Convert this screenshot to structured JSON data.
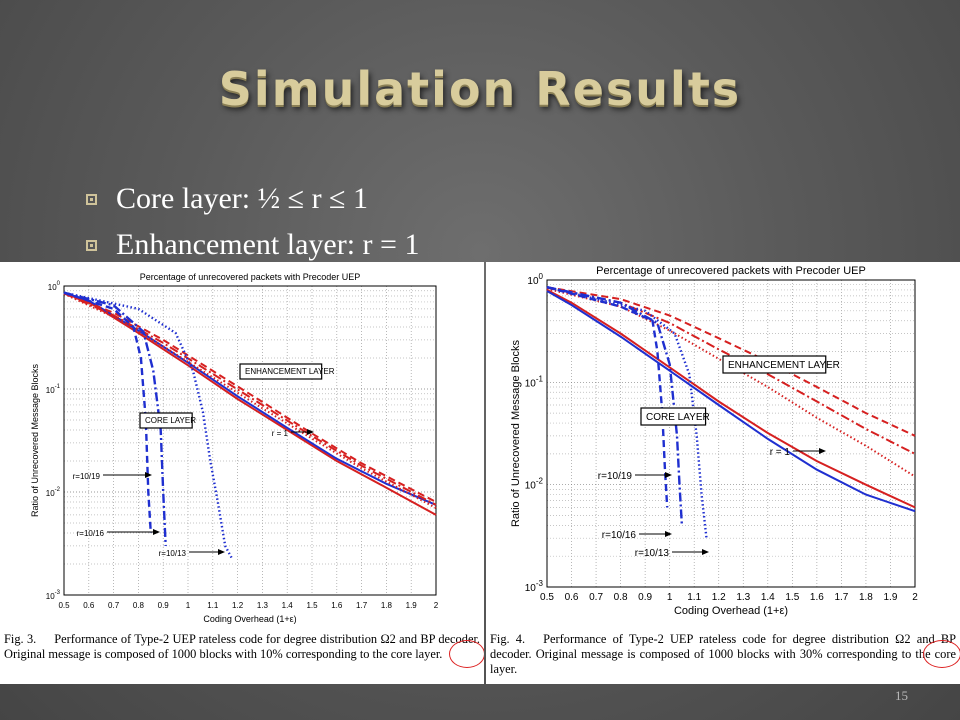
{
  "slide": {
    "title": "Simulation Results",
    "bullets": [
      "Core layer: ½ ≤ r ≤ 1",
      "Enhancement layer: r = 1"
    ],
    "page_number": "15"
  },
  "colors": {
    "title": "#d8cc9c",
    "red": "#d62020",
    "blue": "#1f2fd0"
  },
  "figures": [
    {
      "caption": {
        "fig_label": "Fig. 3.",
        "text": "Performance of Type-2 UEP rateless code for degree distribution Ω2 and BP decoder. Original message is composed of 1000 blocks with 10% corresponding to the core layer."
      }
    },
    {
      "caption": {
        "fig_label": "Fig. 4.",
        "text": "Performance of Type-2 UEP rateless code for degree distribution Ω2 and BP decoder. Original message is composed of 1000 blocks with 30% corresponding to the core layer."
      }
    }
  ],
  "chart_data": [
    {
      "type": "line",
      "title": "Percentage of unrecovered packets with Precoder UEP",
      "xlabel": "Coding Overhead (1+ε)",
      "ylabel": "Ratio of Unrecovered Message Blocks",
      "xlim": [
        0.5,
        2
      ],
      "ylim": [
        0.001,
        1
      ],
      "yscale": "log",
      "grid": true,
      "xticks": [
        "0.5",
        "0.6",
        "0.7",
        "0.8",
        "0.9",
        "1",
        "1.1",
        "1.2",
        "1.3",
        "1.4",
        "1.5",
        "1.6",
        "1.7",
        "1.8",
        "1.9",
        "2"
      ],
      "yticks": [
        "10^0",
        "10^-1",
        "10^-2",
        "10^-3"
      ],
      "annotations": [
        "ENHANCEMENT LAYER",
        "CORE LAYER",
        "r = 1",
        "r=10/19",
        "r=10/16",
        "r=10/13"
      ],
      "series": [
        {
          "color": "#d62020",
          "style": "solid",
          "x": [
            0.5,
            0.6,
            0.8,
            1.0,
            1.2,
            1.4,
            1.6,
            1.8,
            2.0
          ],
          "y": [
            0.85,
            0.7,
            0.35,
            0.17,
            0.08,
            0.04,
            0.02,
            0.011,
            0.006
          ]
        },
        {
          "color": "#1f2fd0",
          "style": "solid",
          "x": [
            0.5,
            0.6,
            0.8,
            1.0,
            1.2,
            1.4,
            1.6,
            1.8,
            2.0
          ],
          "y": [
            0.86,
            0.72,
            0.37,
            0.18,
            0.085,
            0.042,
            0.021,
            0.012,
            0.0075
          ]
        },
        {
          "color": "#d62020",
          "style": "dashed",
          "x": [
            0.5,
            0.7,
            0.9,
            1.1,
            1.3,
            1.5,
            1.7,
            2.0
          ],
          "y": [
            0.85,
            0.55,
            0.3,
            0.15,
            0.075,
            0.037,
            0.019,
            0.008
          ]
        },
        {
          "color": "#d62020",
          "style": "dashdot",
          "x": [
            0.5,
            0.7,
            0.9,
            1.1,
            1.3,
            1.5,
            1.7,
            2.0
          ],
          "y": [
            0.85,
            0.52,
            0.28,
            0.14,
            0.07,
            0.035,
            0.018,
            0.0075
          ]
        },
        {
          "color": "#d62020",
          "style": "dotted",
          "x": [
            0.5,
            0.7,
            0.9,
            1.1,
            1.3,
            1.5,
            1.7,
            2.0
          ],
          "y": [
            0.84,
            0.5,
            0.26,
            0.13,
            0.065,
            0.033,
            0.017,
            0.007
          ]
        },
        {
          "color": "#1f2fd0",
          "style": "dashed",
          "x": [
            0.5,
            0.7,
            0.78,
            0.81,
            0.83,
            0.84,
            0.85
          ],
          "y": [
            0.86,
            0.6,
            0.4,
            0.2,
            0.05,
            0.01,
            0.004
          ]
        },
        {
          "color": "#1f2fd0",
          "style": "dashdot",
          "x": [
            0.5,
            0.7,
            0.82,
            0.86,
            0.89,
            0.9,
            0.91
          ],
          "y": [
            0.86,
            0.65,
            0.36,
            0.15,
            0.04,
            0.01,
            0.003
          ]
        },
        {
          "color": "#1f2fd0",
          "style": "dotted",
          "x": [
            0.5,
            0.8,
            0.95,
            1.02,
            1.06,
            1.09,
            1.12,
            1.15,
            1.18
          ],
          "y": [
            0.86,
            0.6,
            0.35,
            0.15,
            0.06,
            0.02,
            0.008,
            0.003,
            0.0022
          ]
        }
      ]
    },
    {
      "type": "line",
      "title": "Percentage of unrecovered packets with Precoder UEP",
      "xlabel": "Coding Overhead (1+ε)",
      "ylabel": "Ratio of Unrecovered Message Blocks",
      "xlim": [
        0.5,
        2
      ],
      "ylim": [
        0.001,
        1
      ],
      "yscale": "log",
      "grid": true,
      "xticks": [
        "0.5",
        "0.6",
        "0.7",
        "0.8",
        "0.9",
        "1",
        "1.1",
        "1.2",
        "1.3",
        "1.4",
        "1.5",
        "1.6",
        "1.7",
        "1.8",
        "1.9",
        "2"
      ],
      "yticks": [
        "10^0",
        "10^-1",
        "10^-2",
        "10^-3"
      ],
      "annotations": [
        "ENHANCEMENT LAYER",
        "CORE LAYER",
        "r = 1",
        "r=10/19",
        "r=10/16",
        "r=10/13"
      ],
      "series": [
        {
          "color": "#d62020",
          "style": "solid",
          "x": [
            0.5,
            0.6,
            0.8,
            1.0,
            1.2,
            1.4,
            1.6,
            1.8,
            2.0
          ],
          "y": [
            0.8,
            0.6,
            0.3,
            0.14,
            0.065,
            0.032,
            0.017,
            0.01,
            0.006
          ]
        },
        {
          "color": "#1f2fd0",
          "style": "solid",
          "x": [
            0.5,
            0.6,
            0.8,
            1.0,
            1.2,
            1.4,
            1.6,
            1.8,
            2.0
          ],
          "y": [
            0.78,
            0.57,
            0.28,
            0.13,
            0.06,
            0.028,
            0.014,
            0.008,
            0.0055
          ]
        },
        {
          "color": "#d62020",
          "style": "dashed",
          "x": [
            0.5,
            0.8,
            1.0,
            1.2,
            1.4,
            1.6,
            1.8,
            2.0
          ],
          "y": [
            0.85,
            0.65,
            0.45,
            0.27,
            0.16,
            0.09,
            0.05,
            0.03
          ]
        },
        {
          "color": "#d62020",
          "style": "dashdot",
          "x": [
            0.5,
            0.8,
            1.0,
            1.2,
            1.4,
            1.6,
            1.8,
            2.0
          ],
          "y": [
            0.84,
            0.6,
            0.38,
            0.21,
            0.12,
            0.065,
            0.035,
            0.02
          ]
        },
        {
          "color": "#d62020",
          "style": "dotted",
          "x": [
            0.5,
            0.8,
            1.0,
            1.2,
            1.4,
            1.6,
            1.8,
            2.0
          ],
          "y": [
            0.82,
            0.55,
            0.32,
            0.17,
            0.09,
            0.045,
            0.024,
            0.012
          ]
        },
        {
          "color": "#1f2fd0",
          "style": "dashed",
          "x": [
            0.5,
            0.8,
            0.93,
            0.95,
            0.97,
            0.98,
            0.99
          ],
          "y": [
            0.85,
            0.55,
            0.4,
            0.2,
            0.05,
            0.015,
            0.006
          ]
        },
        {
          "color": "#1f2fd0",
          "style": "dashdot",
          "x": [
            0.5,
            0.8,
            0.95,
            1.0,
            1.03,
            1.04,
            1.05
          ],
          "y": [
            0.85,
            0.6,
            0.38,
            0.15,
            0.03,
            0.01,
            0.004
          ]
        },
        {
          "color": "#1f2fd0",
          "style": "dotted",
          "x": [
            0.5,
            0.9,
            1.02,
            1.08,
            1.11,
            1.13,
            1.15
          ],
          "y": [
            0.85,
            0.5,
            0.3,
            0.12,
            0.03,
            0.008,
            0.003
          ]
        }
      ]
    }
  ]
}
